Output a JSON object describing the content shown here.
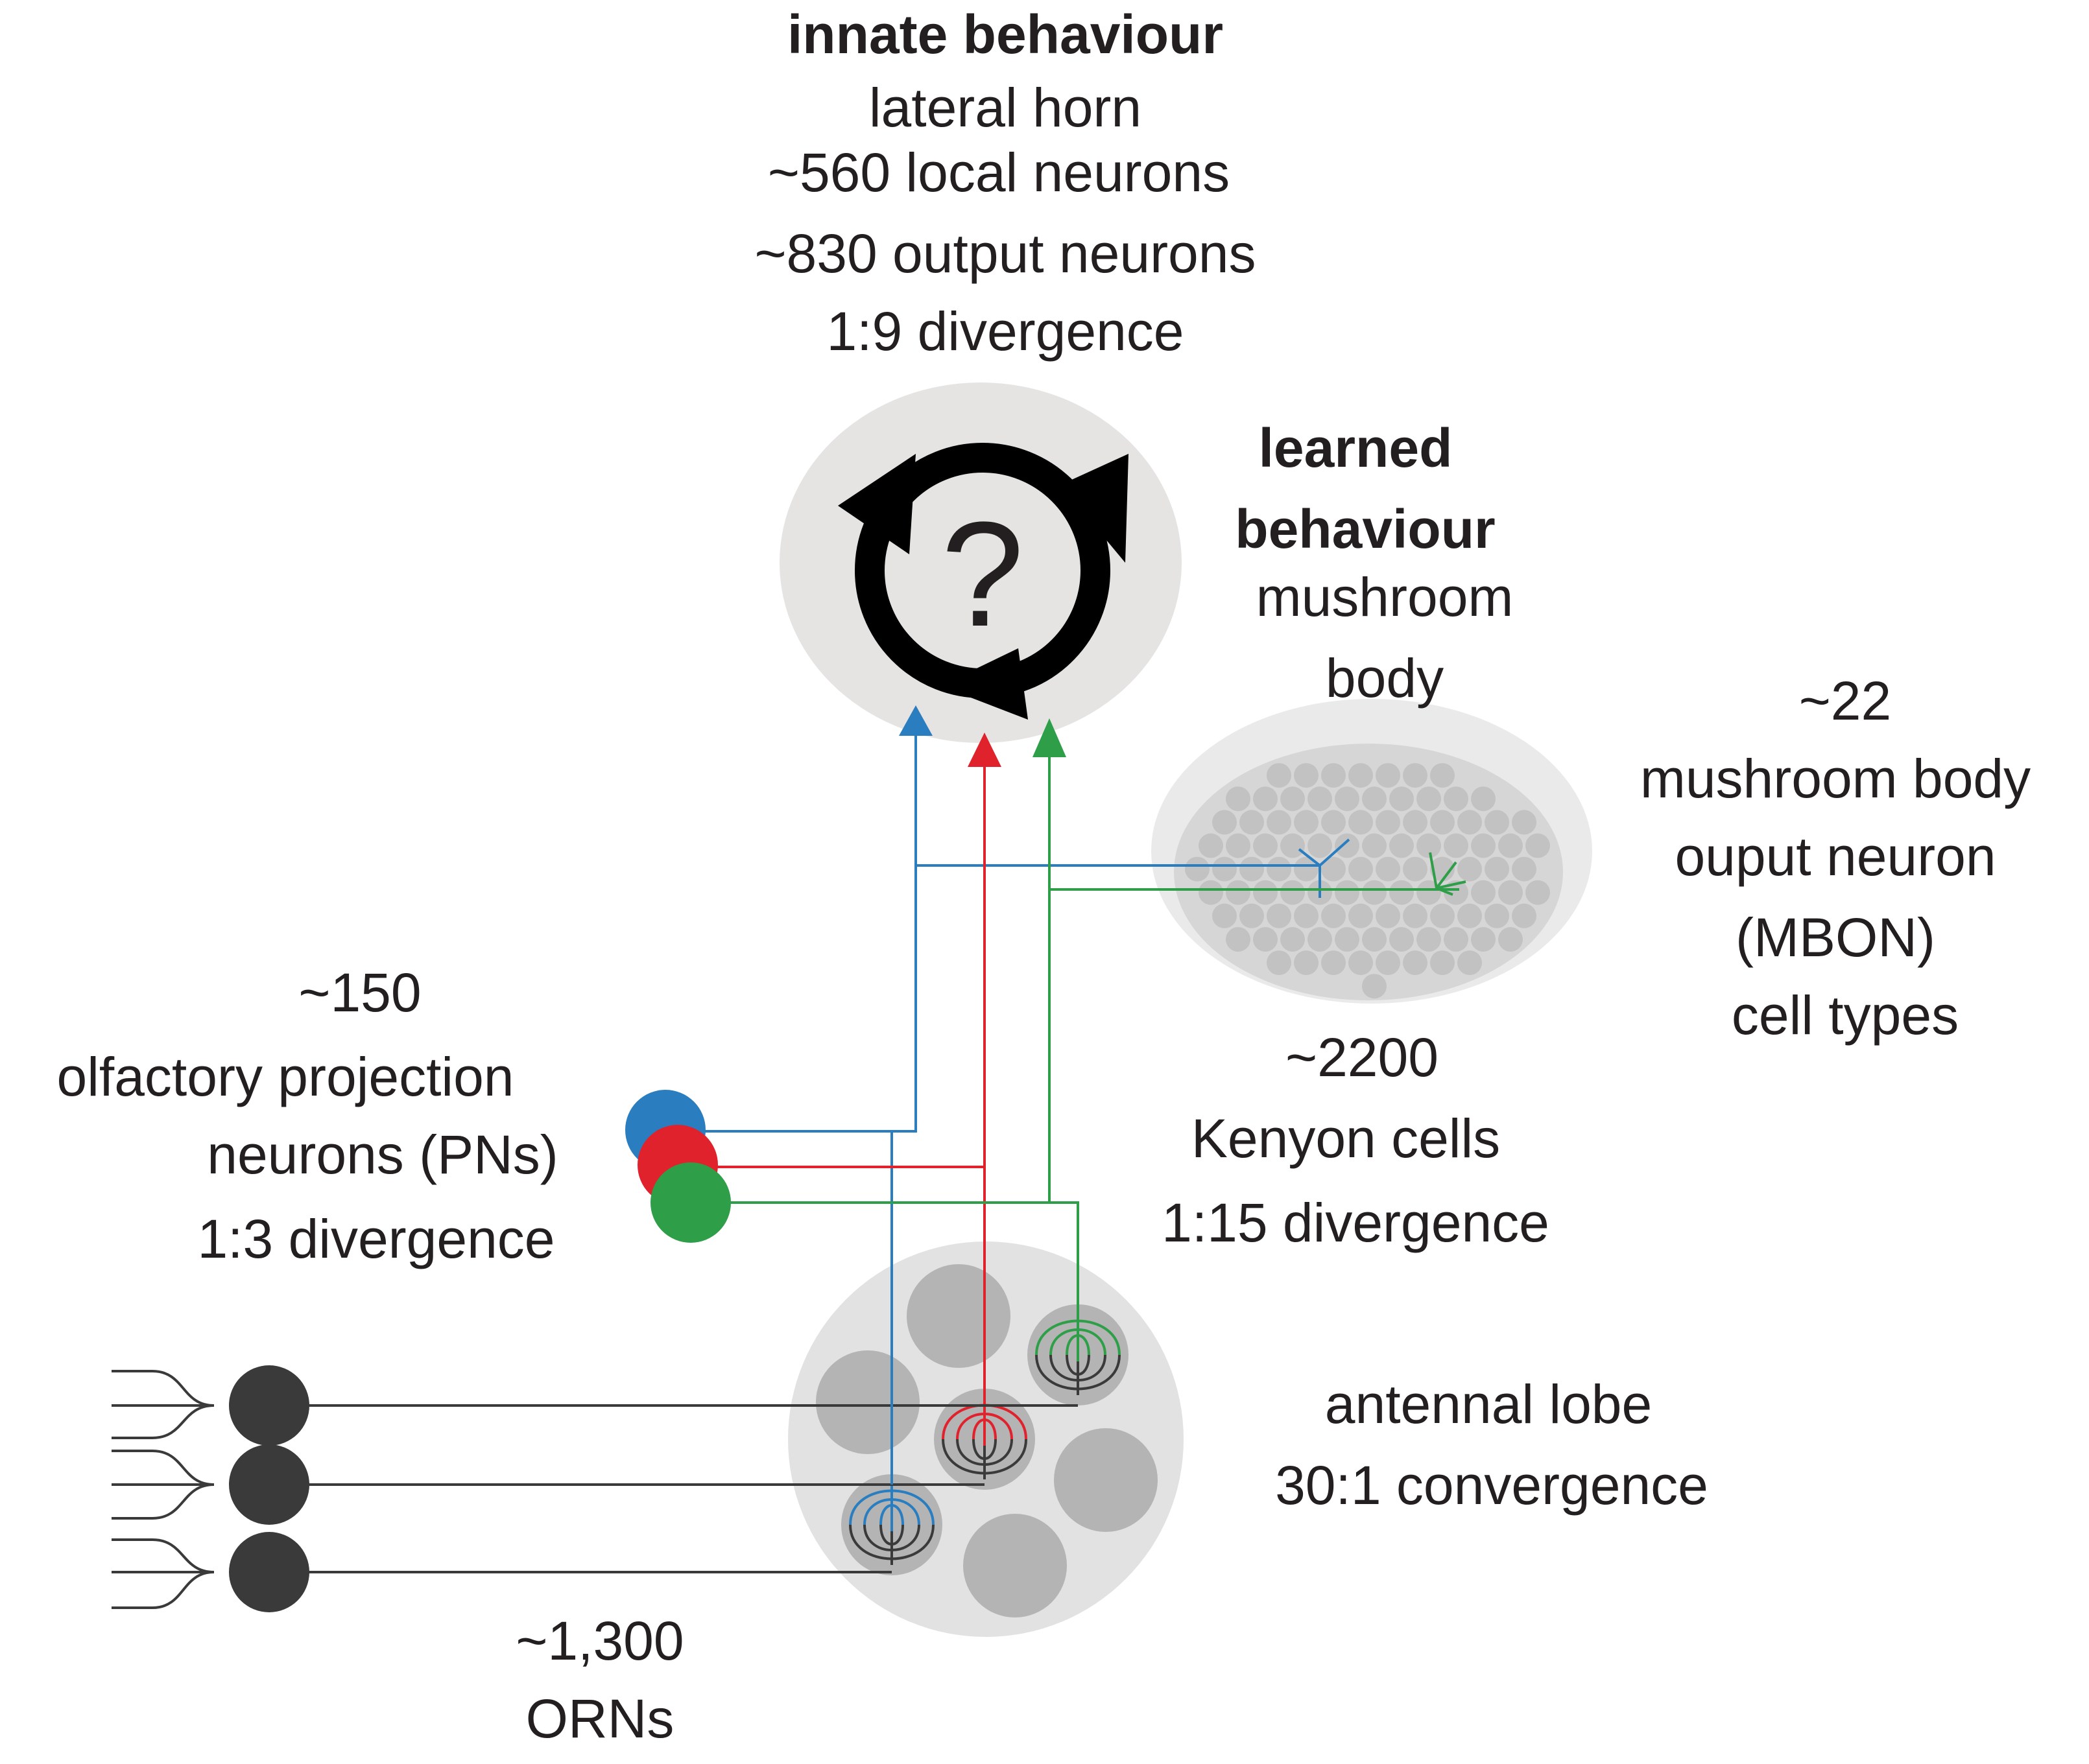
{
  "lateral_horn": {
    "heading": "innate behaviour",
    "name": "lateral horn",
    "local_neurons": "~560 local neurons",
    "output_neurons": "~830 output neurons",
    "divergence": "1:9 divergence",
    "center_symbol": "?"
  },
  "mushroom_body": {
    "heading_line1": "learned",
    "heading_line2": "behaviour",
    "name_line1": "mushroom",
    "name_line2": "body",
    "kenyon_count": "~2200",
    "kenyon_label": "Kenyon cells",
    "kenyon_divergence": "1:15 divergence"
  },
  "mbon": {
    "count": "~22",
    "line1": "mushroom body",
    "line2": "ouput neuron",
    "line3": "(MBON)",
    "line4": "cell types"
  },
  "projection_neurons": {
    "count": "~150",
    "line1": "olfactory projection",
    "line2": "neurons (PNs)",
    "divergence": "1:3 divergence"
  },
  "antennal_lobe": {
    "name": "antennal lobe",
    "convergence": "30:1 convergence"
  },
  "orns": {
    "count": "~1,300",
    "label": "ORNs"
  },
  "colors": {
    "blue": "#2a7ec0",
    "red": "#e0222d",
    "green": "#2f9e48",
    "neuron_dark": "#3a3a3a",
    "region_fill": "#e6e3e3",
    "mb_outer": "#eaeaea",
    "mb_cells": "#c2c2c2",
    "glomerulus": "#b4b4b4"
  }
}
